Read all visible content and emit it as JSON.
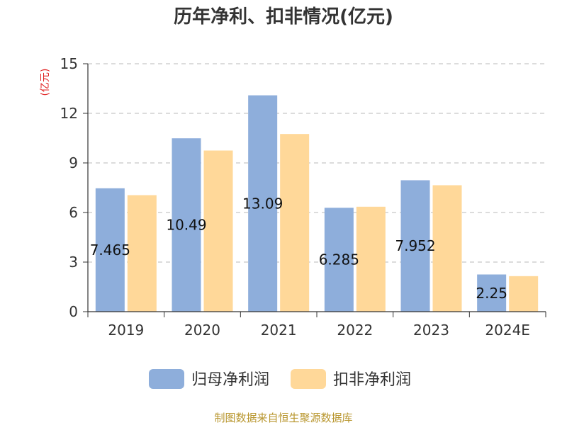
{
  "colors": {
    "series_0": "#8eaedb",
    "series_1": "#ffd899",
    "grid": "#c8c8c8",
    "axis": "#333333",
    "unit": "#e02020",
    "source": "#b8962e"
  },
  "chart_data": {
    "type": "bar",
    "title": "历年净利、扣非情况(亿元)",
    "unit_label": "(亿元)",
    "xlabel": "",
    "ylabel": "",
    "categories": [
      "2019",
      "2020",
      "2021",
      "2022",
      "2023",
      "2024E"
    ],
    "series": [
      {
        "name": "归母净利润",
        "values": [
          7.465,
          10.49,
          13.09,
          6.285,
          7.952,
          2.25
        ]
      },
      {
        "name": "扣非净利润",
        "values": [
          7.05,
          9.75,
          10.75,
          6.35,
          7.65,
          2.15
        ]
      }
    ],
    "data_labels": [
      "7.465",
      "10.49",
      "13.09",
      "6.285",
      "7.952",
      "2.25"
    ],
    "ylim": [
      0,
      15
    ],
    "yticks": [
      "0",
      "3",
      "6",
      "9",
      "12",
      "15"
    ],
    "grid": true,
    "legend_position": "bottom",
    "source_note": "制图数据来自恒生聚源数据库"
  }
}
